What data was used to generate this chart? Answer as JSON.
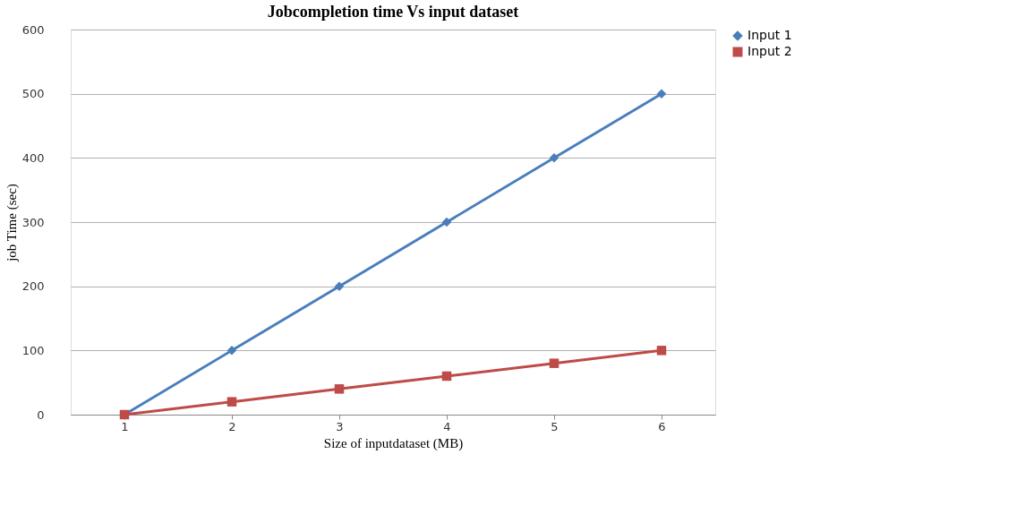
{
  "chart_data": {
    "type": "line",
    "title": "Jobcompletion time Vs input dataset",
    "xlabel": "Size of inputdataset (MB)",
    "ylabel": "job Time (sec)",
    "categories": [
      "1",
      "2",
      "3",
      "4",
      "5",
      "6"
    ],
    "series": [
      {
        "name": "Input 1",
        "color": "#4a7ebb",
        "marker": "diamond",
        "values": [
          0,
          100,
          200,
          300,
          400,
          500
        ]
      },
      {
        "name": "Input 2",
        "color": "#be4b48",
        "marker": "square",
        "values": [
          0,
          20,
          40,
          60,
          80,
          100
        ]
      }
    ],
    "ylim": [
      0,
      600
    ],
    "yticks": [
      0,
      100,
      200,
      300,
      400,
      500,
      600
    ],
    "grid": "y",
    "legend": "right",
    "line_style": "solid"
  }
}
